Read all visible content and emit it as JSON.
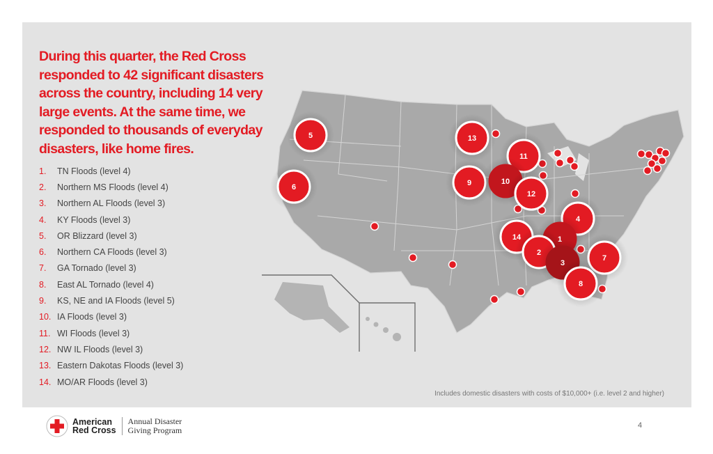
{
  "headline": "During this quarter, the Red Cross responded to 42 significant disasters across the country, including 14 very large events.  At the same time, we responded to thousands of everyday disasters, like home fires.",
  "disasters": [
    {
      "num": "1.",
      "label": "TN Floods (level 4)"
    },
    {
      "num": "2.",
      "label": "Northern MS Floods (level 4)"
    },
    {
      "num": "3.",
      "label": "Northern AL Floods (level 3)"
    },
    {
      "num": "4.",
      "label": "KY Floods (level 3)"
    },
    {
      "num": "5.",
      "label": "OR Blizzard  (level 3)"
    },
    {
      "num": "6.",
      "label": "Northern CA Floods (level 3)"
    },
    {
      "num": "7.",
      "label": "GA Tornado (level 3)"
    },
    {
      "num": "8.",
      "label": "East AL Tornado (level 4)"
    },
    {
      "num": "9.",
      "label": "KS, NE and IA Floods (level 5)"
    },
    {
      "num": "10.",
      "label": "IA Floods (level 3)"
    },
    {
      "num": "11.",
      "label": "WI Floods (level 3)"
    },
    {
      "num": "12.",
      "label": "NW IL Floods (level 3)"
    },
    {
      "num": "13.",
      "label": "Eastern Dakotas Floods (level 3)"
    },
    {
      "num": "14.",
      "label": "MO/AR Floods (level 3)"
    }
  ],
  "map": {
    "large_markers": [
      "5",
      "13",
      "11",
      "6",
      "9",
      "10",
      "12",
      "4",
      "14",
      "1",
      "2",
      "3",
      "7",
      "8"
    ],
    "colors": {
      "marker": "#e31b23",
      "land": "#a9a9a9",
      "border": "#d4d4d4",
      "panel": "#e3e3e3"
    }
  },
  "footnote": "Includes domestic disasters with costs of $10,000+ (i.e. level 2 and higher)",
  "page_number": "4",
  "logo": {
    "brand_line1": "American",
    "brand_line2": "Red Cross",
    "program_line1": "Annual Disaster",
    "program_line2": "Giving Program",
    "icon": "red-cross-icon"
  }
}
